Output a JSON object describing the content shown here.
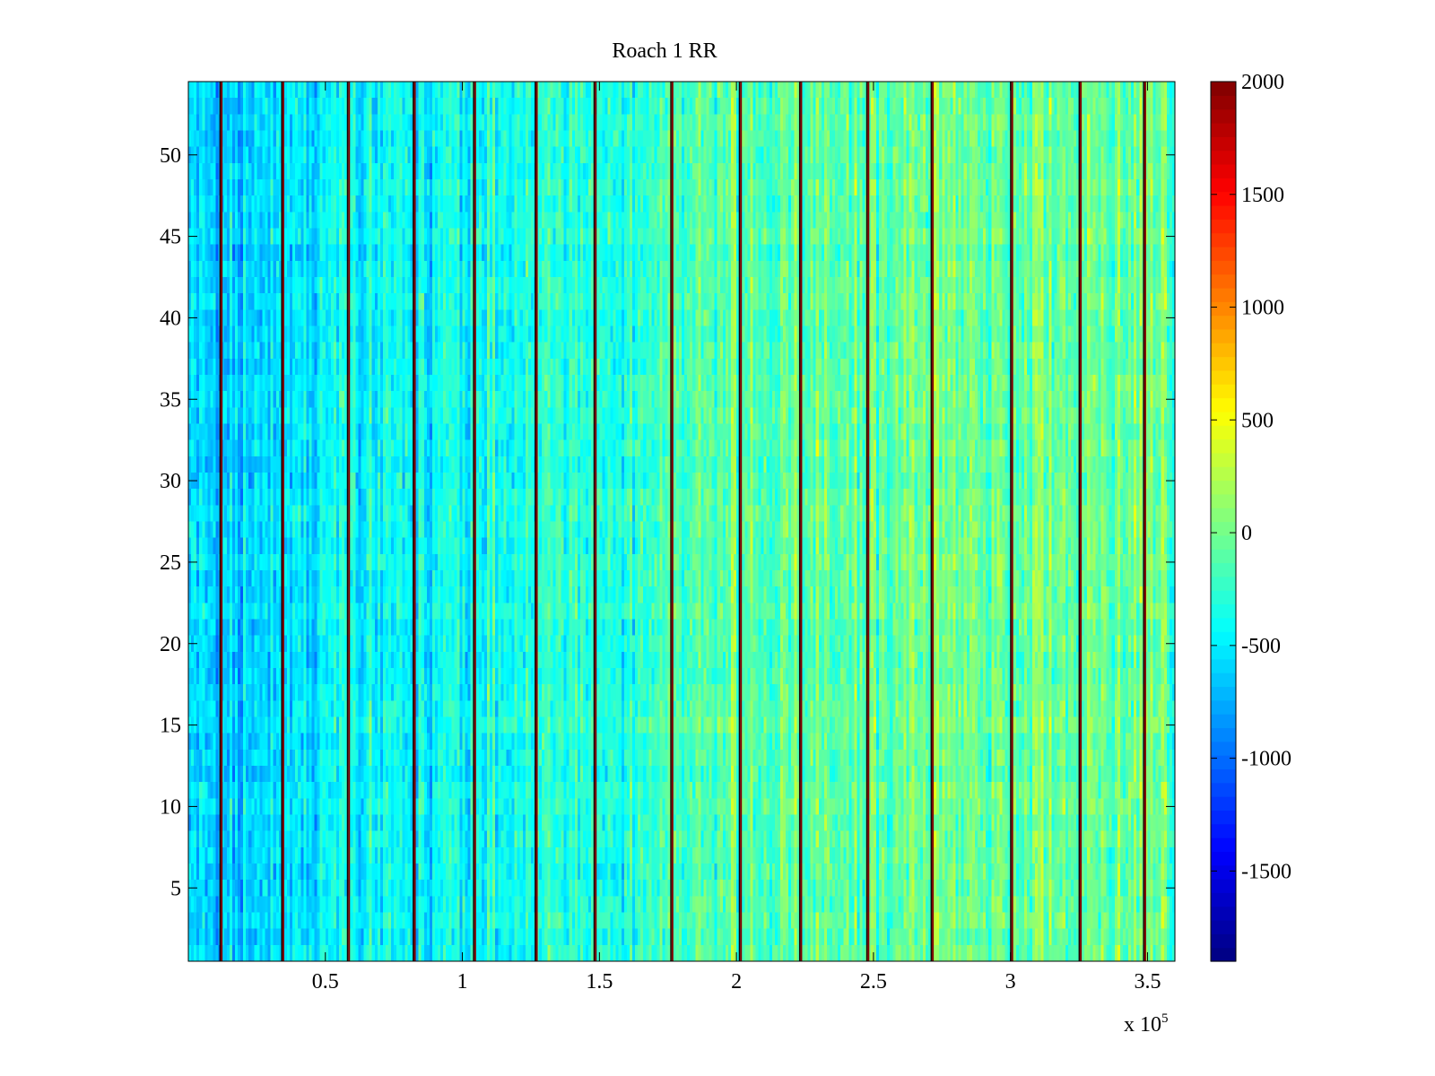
{
  "chart_data": {
    "type": "heatmap",
    "title": "Roach 1 RR",
    "xlabel": "",
    "ylabel": "",
    "x_multiplier": "x 10",
    "x_multiplier_exponent": "5",
    "xlim": [
      0,
      3.6
    ],
    "ylim": [
      0.5,
      54.5
    ],
    "x_ticks": [
      0.5,
      1,
      1.5,
      2,
      2.5,
      3,
      3.5
    ],
    "x_tick_labels": [
      "0.5",
      "1",
      "1.5",
      "2",
      "2.5",
      "3",
      "3.5"
    ],
    "y_ticks": [
      5,
      10,
      15,
      20,
      25,
      30,
      35,
      40,
      45,
      50
    ],
    "y_tick_labels": [
      "5",
      "10",
      "15",
      "20",
      "25",
      "30",
      "35",
      "40",
      "45",
      "50"
    ],
    "n_rows": 54,
    "n_columns": 360,
    "colormap": "jet",
    "clim": [
      -1900,
      2000
    ],
    "colorbar_ticks": [
      2000,
      1500,
      1000,
      500,
      0,
      -500,
      -1000,
      -1500
    ],
    "colorbar_tick_labels": [
      "2000",
      "1500",
      "1000",
      "500",
      "0",
      "-500",
      "-1000",
      "-1500"
    ],
    "background_trend": {
      "x": [
        0,
        0.3,
        0.6,
        1.0,
        1.5,
        2.0,
        2.5,
        3.0,
        3.6
      ],
      "mean_value": [
        -650,
        -600,
        -450,
        -400,
        -250,
        -100,
        -50,
        0,
        -100
      ],
      "noise_amplitude": 350
    },
    "bright_stripes_x": [
      0.12,
      0.345,
      0.585,
      0.825,
      1.045,
      1.27,
      1.485,
      1.765,
      2.015,
      2.235,
      2.48,
      2.715,
      3.005,
      3.255,
      3.49
    ],
    "bright_stripe_value": 2000
  }
}
